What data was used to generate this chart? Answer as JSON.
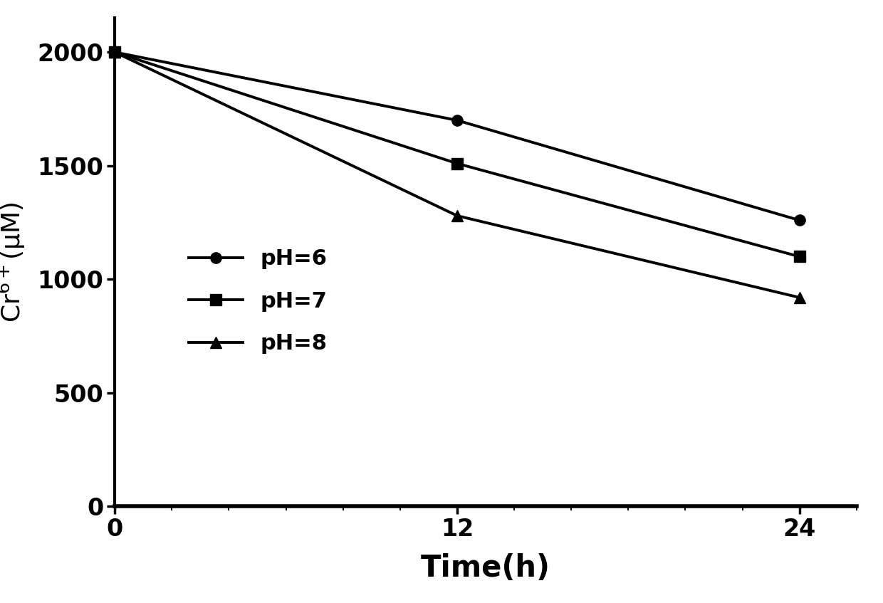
{
  "series": [
    {
      "label": "pH=6",
      "x": [
        0,
        12,
        24
      ],
      "y": [
        2000,
        1700,
        1260
      ],
      "marker": "o",
      "color": "#000000",
      "linewidth": 2.8,
      "markersize": 11
    },
    {
      "label": "pH=7",
      "x": [
        0,
        12,
        24
      ],
      "y": [
        2000,
        1510,
        1100
      ],
      "marker": "s",
      "color": "#000000",
      "linewidth": 2.8,
      "markersize": 11
    },
    {
      "label": "pH=8",
      "x": [
        0,
        12,
        24
      ],
      "y": [
        2000,
        1280,
        920
      ],
      "marker": "^",
      "color": "#000000",
      "linewidth": 2.8,
      "markersize": 11
    }
  ],
  "xlabel": "Time(h)",
  "ylabel": "$\\mathrm{Cr^{6+}(\\mu M)}$",
  "xlim": [
    0,
    26
  ],
  "ylim": [
    0,
    2150
  ],
  "xticks": [
    0,
    12,
    24
  ],
  "yticks": [
    0,
    500,
    1000,
    1500,
    2000
  ],
  "xlabel_fontsize": 30,
  "ylabel_fontsize": 26,
  "tick_fontsize": 24,
  "legend_fontsize": 22,
  "background_color": "#ffffff",
  "spine_linewidth": 3.0,
  "bottom_spine_linewidth": 4.0
}
